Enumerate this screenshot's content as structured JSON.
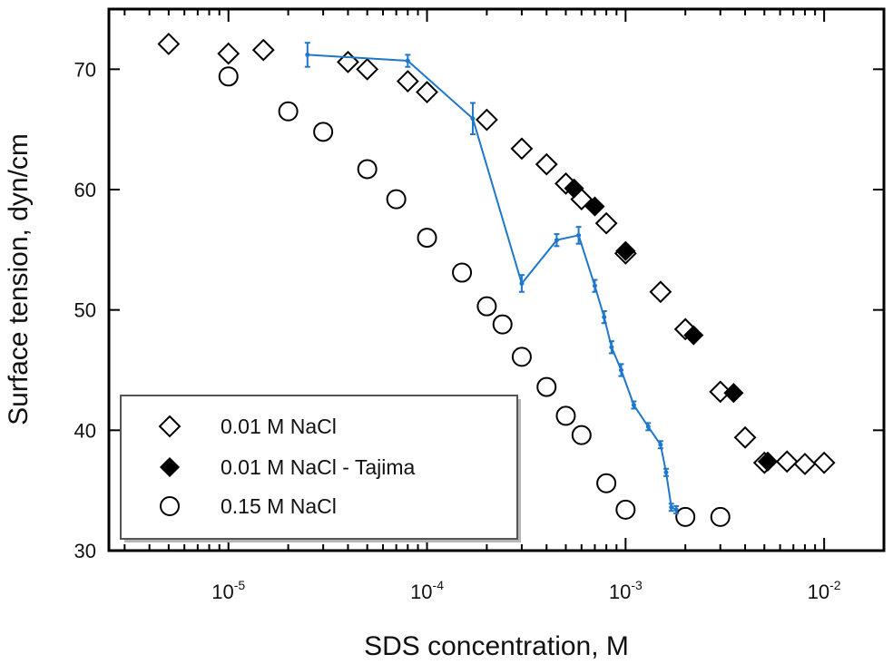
{
  "chart_data": {
    "type": "scatter",
    "xscale": "log",
    "xlabel": "SDS concentration, M",
    "ylabel": "Surface tension, dyn/cm",
    "xlim": [
      2.5e-06,
      0.02
    ],
    "ylim": [
      30,
      75
    ],
    "x_ticks": [
      {
        "value": 1e-05,
        "base": "10",
        "exp": "-5"
      },
      {
        "value": 0.0001,
        "base": "10",
        "exp": "-4"
      },
      {
        "value": 0.001,
        "base": "10",
        "exp": "-3"
      },
      {
        "value": 0.01,
        "base": "10",
        "exp": "-2"
      }
    ],
    "y_ticks": [
      30,
      40,
      50,
      60,
      70
    ],
    "grid": false,
    "legend_position": "bottom-left",
    "series": [
      {
        "name": "0.01 M NaCl",
        "marker": "diamond-open",
        "color": "#000000",
        "points": [
          [
            5e-06,
            72.1
          ],
          [
            1e-05,
            71.3
          ],
          [
            1.5e-05,
            71.6
          ],
          [
            4e-05,
            70.6
          ],
          [
            5e-05,
            70.0
          ],
          [
            8e-05,
            69.0
          ],
          [
            0.0001,
            68.1
          ],
          [
            0.0002,
            65.8
          ],
          [
            0.0003,
            63.4
          ],
          [
            0.0004,
            62.1
          ],
          [
            0.0005,
            60.5
          ],
          [
            0.0006,
            59.2
          ],
          [
            0.0008,
            57.2
          ],
          [
            0.001,
            54.7
          ],
          [
            0.0015,
            51.5
          ],
          [
            0.002,
            48.4
          ],
          [
            0.003,
            43.2
          ],
          [
            0.004,
            39.4
          ],
          [
            0.005,
            37.3
          ],
          [
            0.0065,
            37.4
          ],
          [
            0.008,
            37.2
          ],
          [
            0.01,
            37.3
          ]
        ]
      },
      {
        "name": "0.01 M NaCl - Tajima",
        "marker": "diamond-filled",
        "color": "#000000",
        "points": [
          [
            0.00055,
            60.1
          ],
          [
            0.0007,
            58.6
          ],
          [
            0.001,
            54.9
          ],
          [
            0.0022,
            47.9
          ],
          [
            0.0035,
            43.1
          ],
          [
            0.0052,
            37.4
          ]
        ]
      },
      {
        "name": "0.15 M NaCl",
        "marker": "circle-open",
        "color": "#000000",
        "points": [
          [
            1e-05,
            69.4
          ],
          [
            2e-05,
            66.5
          ],
          [
            3e-05,
            64.8
          ],
          [
            5e-05,
            61.7
          ],
          [
            7e-05,
            59.2
          ],
          [
            0.0001,
            56.0
          ],
          [
            0.00015,
            53.1
          ],
          [
            0.0002,
            50.3
          ],
          [
            0.00024,
            48.8
          ],
          [
            0.0003,
            46.1
          ],
          [
            0.0004,
            43.6
          ],
          [
            0.0005,
            41.2
          ],
          [
            0.0006,
            39.6
          ],
          [
            0.0008,
            35.6
          ],
          [
            0.001,
            33.4
          ],
          [
            0.002,
            32.8
          ],
          [
            0.003,
            32.8
          ]
        ]
      },
      {
        "name": "",
        "marker": "line-errorbar",
        "color": "#1f77c9",
        "points": [
          [
            2.5e-05,
            71.2
          ],
          [
            8e-05,
            70.7
          ],
          [
            0.00017,
            65.9
          ],
          [
            0.0003,
            52.2
          ],
          [
            0.00045,
            55.8
          ],
          [
            0.00058,
            56.2
          ],
          [
            0.0007,
            52.0
          ],
          [
            0.00078,
            49.4
          ],
          [
            0.00085,
            46.9
          ],
          [
            0.00095,
            45.0
          ],
          [
            0.0011,
            42.1
          ],
          [
            0.0013,
            40.3
          ],
          [
            0.0015,
            38.8
          ],
          [
            0.0016,
            36.5
          ],
          [
            0.0017,
            33.6
          ],
          [
            0.0018,
            33.4
          ]
        ],
        "errors": [
          1.0,
          0.5,
          1.3,
          0.7,
          0.5,
          0.7,
          0.5,
          0.5,
          0.5,
          0.5,
          0.3,
          0.3,
          0.3,
          0.3,
          0.3,
          0.3
        ]
      }
    ]
  }
}
